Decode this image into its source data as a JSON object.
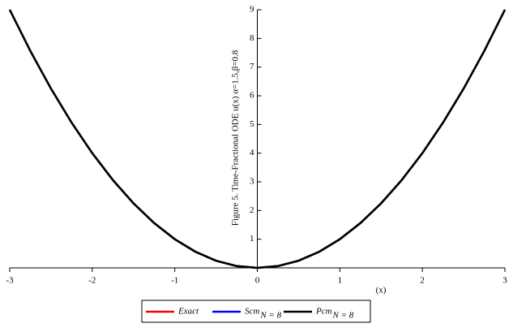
{
  "chart_data": {
    "type": "line",
    "y_label": "Figure 5. Time-Fractional ODE u(x) α=1.5,β=0.8",
    "x_label": "(x)",
    "x": [
      -3,
      -2.75,
      -2.5,
      -2.25,
      -2,
      -1.75,
      -1.5,
      -1.25,
      -1,
      -0.75,
      -0.5,
      -0.25,
      0,
      0.25,
      0.5,
      0.75,
      1,
      1.25,
      1.5,
      1.75,
      2,
      2.25,
      2.5,
      2.75,
      3
    ],
    "series": [
      {
        "name": "Exact",
        "subscript": null,
        "color": "#ff0000",
        "values": [
          9,
          7.5625,
          6.25,
          5.0625,
          4,
          3.0625,
          2.25,
          1.5625,
          1,
          0.5625,
          0.25,
          0.0625,
          0,
          0.0625,
          0.25,
          0.5625,
          1,
          1.5625,
          2.25,
          3.0625,
          4,
          5.0625,
          6.25,
          7.5625,
          9
        ]
      },
      {
        "name": "Scm",
        "subscript": "N = 8",
        "color": "#0000ff",
        "values": [
          9,
          7.5625,
          6.25,
          5.0625,
          4,
          3.0625,
          2.25,
          1.5625,
          1,
          0.5625,
          0.25,
          0.0625,
          0,
          0.0625,
          0.25,
          0.5625,
          1,
          1.5625,
          2.25,
          3.0625,
          4,
          5.0625,
          6.25,
          7.5625,
          9
        ]
      },
      {
        "name": "Pcm",
        "subscript": "N = 8",
        "color": "#000000",
        "values": [
          9,
          7.5625,
          6.25,
          5.0625,
          4,
          3.0625,
          2.25,
          1.5625,
          1,
          0.5625,
          0.25,
          0.0625,
          0,
          0.0625,
          0.25,
          0.5625,
          1,
          1.5625,
          2.25,
          3.0625,
          4,
          5.0625,
          6.25,
          7.5625,
          9
        ]
      }
    ],
    "xlim": [
      -3,
      3
    ],
    "ylim": [
      0,
      9
    ],
    "xticks": [
      -3,
      -2,
      -1,
      0,
      1,
      2,
      3
    ],
    "yticks": [
      1,
      2,
      3,
      4,
      5,
      6,
      7,
      8,
      9
    ]
  }
}
